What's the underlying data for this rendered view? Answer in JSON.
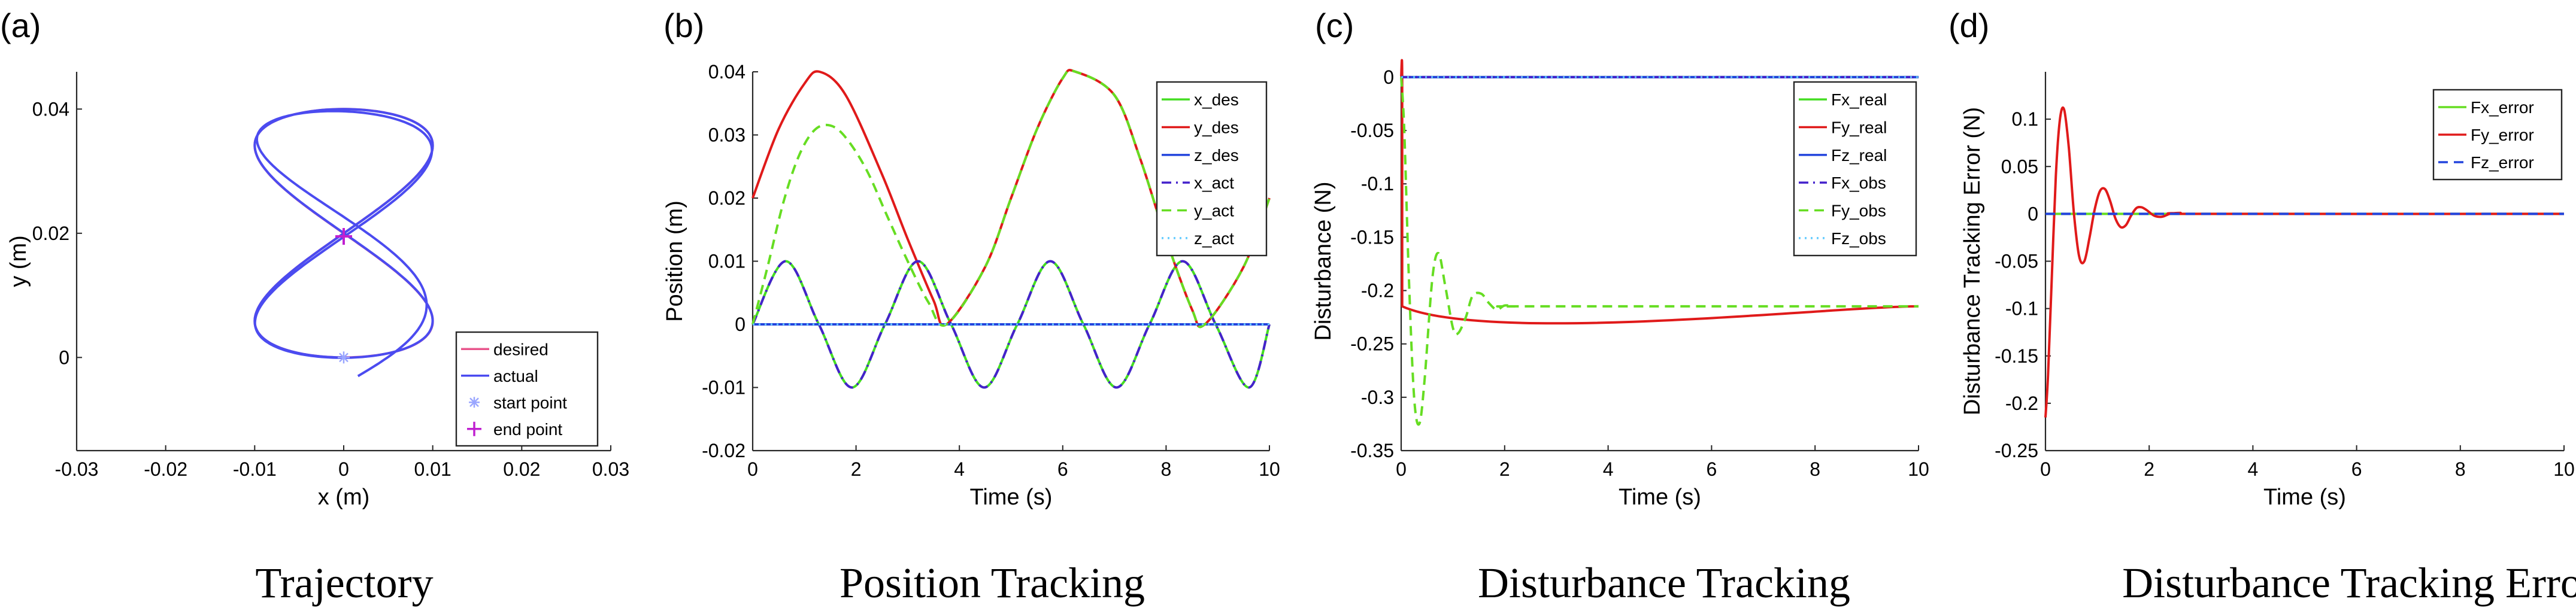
{
  "colors": {
    "desired": "#e8558c",
    "actual": "#4b4bf0",
    "start_marker": "#9aa6ff",
    "end_marker": "#c020d0",
    "x_des": "#44dd22",
    "y_des": "#e01a1a",
    "z_des": "#2244dd",
    "x_act": "#4422cc",
    "y_act": "#66dd22",
    "z_act": "#66ccff",
    "zero_line": "#2266ee"
  },
  "chart_data": [
    {
      "id": "a",
      "panel_label": "(a)",
      "caption": "Trajectory",
      "type": "line",
      "xlabel": "x (m)",
      "ylabel": "y (m)",
      "xlim": [
        -0.03,
        0.03
      ],
      "ylim": [
        -0.015,
        0.046
      ],
      "xticks": [
        "-0.03",
        "-0.02",
        "-0.01",
        "0",
        "0.01",
        "0.02",
        "0.03"
      ],
      "xtick_values": [
        -0.03,
        -0.02,
        -0.01,
        0,
        0.01,
        0.02,
        0.03
      ],
      "yticks": [
        "0",
        "0.02",
        "0.04"
      ],
      "ytick_values": [
        0,
        0.02,
        0.04
      ],
      "legend_position": "bottom-right",
      "series": [
        {
          "name": "desired",
          "kind": "line",
          "x_amplitude": 0.01,
          "y_center": 0.02,
          "y_amplitude": 0.02,
          "period_s": 5.0,
          "duration_s": 10.0
        },
        {
          "name": "actual",
          "kind": "line",
          "x_amplitude": 0.01,
          "y_center": 0.02,
          "y_amplitude": 0.02,
          "period_s": 5.0,
          "duration_s": 10.0
        },
        {
          "name": "start point",
          "kind": "marker",
          "marker": "asterisk",
          "x": [
            0.0
          ],
          "y": [
            0.0
          ]
        },
        {
          "name": "end point",
          "kind": "marker",
          "marker": "plus",
          "x": [
            0.0
          ],
          "y": [
            0.0195
          ]
        }
      ]
    },
    {
      "id": "b",
      "panel_label": "(b)",
      "caption": "Position Tracking",
      "type": "line",
      "xlabel": "Time (s)",
      "ylabel": "Position (m)",
      "xlim": [
        0,
        10
      ],
      "ylim": [
        -0.02,
        0.04
      ],
      "xticks": [
        "0",
        "2",
        "4",
        "6",
        "8",
        "10"
      ],
      "xtick_values": [
        0,
        2,
        4,
        6,
        8,
        10
      ],
      "yticks": [
        "-0.02",
        "-0.01",
        "0",
        "0.01",
        "0.02",
        "0.03",
        "0.04"
      ],
      "ytick_values": [
        -0.02,
        -0.01,
        0,
        0.01,
        0.02,
        0.03,
        0.04
      ],
      "legend_position": "top-right",
      "series": [
        {
          "name": "x_des",
          "style": "solid",
          "t": [
            0,
            0.64,
            1.28,
            1.92,
            2.56,
            3.2,
            3.84,
            4.48,
            5.12,
            5.76,
            6.4,
            7.04,
            7.68,
            8.32,
            8.96,
            9.6,
            10
          ],
          "y": [
            0,
            0.01,
            0,
            -0.01,
            0,
            0.01,
            0,
            -0.01,
            0,
            0.01,
            0,
            -0.01,
            0,
            0.01,
            0,
            -0.01,
            0.0
          ]
        },
        {
          "name": "y_des",
          "style": "solid",
          "t": [
            0,
            0.5,
            1.0,
            1.3,
            1.8,
            2.5,
            3.0,
            3.5,
            3.75,
            4.5,
            5.0,
            5.5,
            6.0,
            6.25,
            7.0,
            7.5,
            8.0,
            8.5,
            8.75,
            9.5,
            10
          ],
          "y": [
            0.02,
            0.0309,
            0.0381,
            0.04,
            0.0363,
            0.0238,
            0.0135,
            0.0038,
            0.0,
            0.0091,
            0.02,
            0.0309,
            0.039,
            0.04,
            0.0363,
            0.0262,
            0.0135,
            0.0024,
            0.0,
            0.0091,
            0.02
          ]
        },
        {
          "name": "z_des",
          "style": "solid",
          "t": [
            0,
            10
          ],
          "y": [
            0,
            0
          ]
        },
        {
          "name": "x_act",
          "style": "dashdot",
          "t": [
            0,
            0.64,
            1.28,
            1.92,
            2.56,
            3.2,
            3.84,
            4.48,
            5.12,
            5.76,
            6.4,
            7.04,
            7.68,
            8.32,
            8.96,
            9.6,
            10
          ],
          "y": [
            0,
            0.01,
            0,
            -0.01,
            0,
            0.01,
            0,
            -0.01,
            0,
            0.01,
            0,
            -0.01,
            0,
            0.01,
            0,
            -0.01,
            0.0
          ]
        },
        {
          "name": "y_act",
          "style": "dashed",
          "t": [
            0,
            0.3,
            0.6,
            0.9,
            1.2,
            1.5,
            1.8,
            2.2,
            2.6,
            3.0,
            3.4,
            3.75,
            4.5,
            5.0,
            5.5,
            6.0,
            6.25,
            7.0,
            7.5,
            8.0,
            8.5,
            8.75,
            9.5,
            10
          ],
          "y": [
            0,
            0.0095,
            0.0195,
            0.0268,
            0.0308,
            0.0315,
            0.0296,
            0.0245,
            0.0172,
            0.01,
            0.0035,
            0.0,
            0.0091,
            0.02,
            0.0309,
            0.039,
            0.04,
            0.0363,
            0.0262,
            0.0135,
            0.0024,
            0.0,
            0.0091,
            0.02
          ]
        },
        {
          "name": "z_act",
          "style": "dotted",
          "t": [
            0,
            10
          ],
          "y": [
            0,
            0
          ]
        }
      ]
    },
    {
      "id": "c",
      "panel_label": "(c)",
      "caption": "Disturbance Tracking",
      "type": "line",
      "xlabel": "Time (s)",
      "ylabel": "Disturbance (N)",
      "xlim": [
        0,
        10
      ],
      "ylim": [
        -0.35,
        0.005
      ],
      "xticks": [
        "0",
        "2",
        "4",
        "6",
        "8",
        "10"
      ],
      "xtick_values": [
        0,
        2,
        4,
        6,
        8,
        10
      ],
      "yticks": [
        "-0.35",
        "-0.3",
        "-0.25",
        "-0.2",
        "-0.15",
        "-0.1",
        "-0.05",
        "0"
      ],
      "ytick_values": [
        -0.35,
        -0.3,
        -0.25,
        -0.2,
        -0.15,
        -0.1,
        -0.05,
        0
      ],
      "legend_position": "top-right",
      "series": [
        {
          "name": "Fx_real",
          "style": "solid",
          "t": [
            0,
            10
          ],
          "y": [
            0,
            0
          ]
        },
        {
          "name": "Fy_real",
          "style": "solid",
          "t": [
            0,
            0.02,
            0.02,
            10
          ],
          "y": [
            0,
            0,
            -0.2148,
            -0.2148
          ]
        },
        {
          "name": "Fz_real",
          "style": "solid",
          "t": [
            0,
            10
          ],
          "y": [
            0,
            0
          ]
        },
        {
          "name": "Fx_obs",
          "style": "dashdot",
          "t": [
            0,
            10
          ],
          "y": [
            0,
            0
          ]
        },
        {
          "name": "Fy_obs",
          "style": "dashed",
          "t": [
            0,
            0.06,
            0.15,
            0.25,
            0.35,
            0.45,
            0.6,
            0.72,
            0.85,
            1.0,
            1.1,
            1.25,
            1.38,
            1.55,
            1.7,
            1.85,
            2.0,
            2.2,
            2.5,
            10
          ],
          "y": [
            0,
            -0.05,
            -0.19,
            -0.3,
            -0.325,
            -0.285,
            -0.19,
            -0.165,
            -0.195,
            -0.235,
            -0.24,
            -0.225,
            -0.205,
            -0.203,
            -0.212,
            -0.218,
            -0.214,
            -0.2148,
            -0.2148,
            -0.2148
          ]
        },
        {
          "name": "Fz_obs",
          "style": "dotted",
          "t": [
            0,
            10
          ],
          "y": [
            0,
            0
          ]
        }
      ]
    },
    {
      "id": "d",
      "panel_label": "(d)",
      "caption": "Disturbance Tracking Error",
      "type": "line",
      "xlabel": "Time (s)",
      "ylabel": "Disturbance Tracking Error (N)",
      "xlim": [
        0,
        10
      ],
      "ylim": [
        -0.25,
        0.15
      ],
      "xticks": [
        "0",
        "2",
        "4",
        "6",
        "8",
        "10"
      ],
      "xtick_values": [
        0,
        2,
        4,
        6,
        8,
        10
      ],
      "yticks": [
        "-0.25",
        "-0.2",
        "-0.15",
        "-0.1",
        "-0.05",
        "0",
        "0.05",
        "0.1"
      ],
      "ytick_values": [
        -0.25,
        -0.2,
        -0.15,
        -0.1,
        -0.05,
        0,
        0.05,
        0.1
      ],
      "legend_position": "top-right",
      "series": [
        {
          "name": "Fx_error",
          "style": "solid",
          "t": [
            0,
            10
          ],
          "y": [
            0,
            0
          ]
        },
        {
          "name": "Fy_error",
          "style": "solid",
          "t": [
            0,
            0.05,
            0.12,
            0.2,
            0.28,
            0.36,
            0.45,
            0.55,
            0.65,
            0.75,
            0.85,
            0.95,
            1.05,
            1.15,
            1.25,
            1.35,
            1.45,
            1.55,
            1.65,
            1.75,
            1.85,
            1.95,
            2.1,
            2.25,
            2.4,
            2.6,
            3.0,
            10
          ],
          "y": [
            -0.215,
            -0.17,
            -0.07,
            0.04,
            0.1,
            0.11,
            0.07,
            0.0,
            -0.045,
            -0.05,
            -0.025,
            0.005,
            0.024,
            0.026,
            0.013,
            -0.005,
            -0.014,
            -0.012,
            -0.002,
            0.006,
            0.007,
            0.004,
            -0.002,
            -0.003,
            0.0,
            0.001,
            0.0,
            0.0
          ]
        },
        {
          "name": "Fz_error",
          "style": "dashed",
          "t": [
            0,
            10
          ],
          "y": [
            0,
            0
          ]
        }
      ]
    }
  ]
}
